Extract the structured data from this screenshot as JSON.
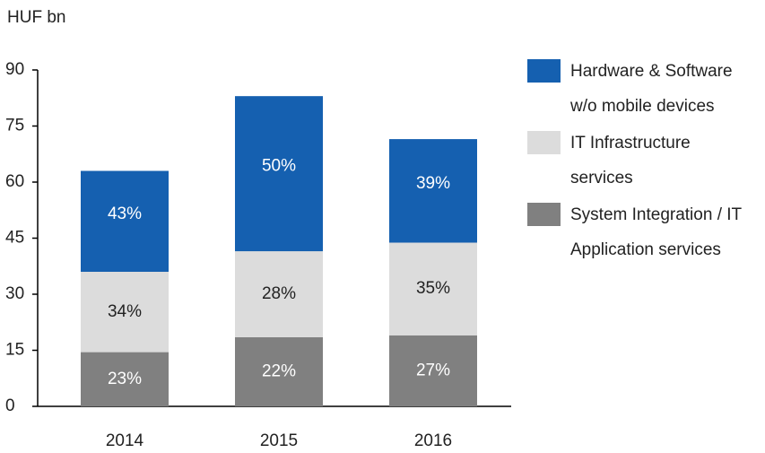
{
  "chart_data": {
    "type": "stacked_bar",
    "unit": "HUF bn",
    "categories": [
      "2014",
      "2015",
      "2016"
    ],
    "series": [
      {
        "name": "System Integration / IT Application services",
        "color": "#808080",
        "label_color": "#ffffff",
        "values": [
          14.5,
          18.5,
          19
        ],
        "labels": [
          "23%",
          "22%",
          "27%"
        ]
      },
      {
        "name": "IT Infrastructure services",
        "color": "#dcdcdc",
        "label_color": "#222222",
        "values": [
          21.5,
          23,
          24.8
        ],
        "labels": [
          "34%",
          "28%",
          "35%"
        ]
      },
      {
        "name": "Hardware & Software w/o mobile devices",
        "color": "#1560b0",
        "label_color": "#ffffff",
        "values": [
          27,
          41.5,
          27.7
        ],
        "labels": [
          "43%",
          "50%",
          "39%"
        ]
      }
    ],
    "ylim": [
      0,
      90
    ],
    "yticks": [
      0,
      15,
      30,
      45,
      60,
      75,
      90
    ],
    "grid": false,
    "legend": "right"
  }
}
